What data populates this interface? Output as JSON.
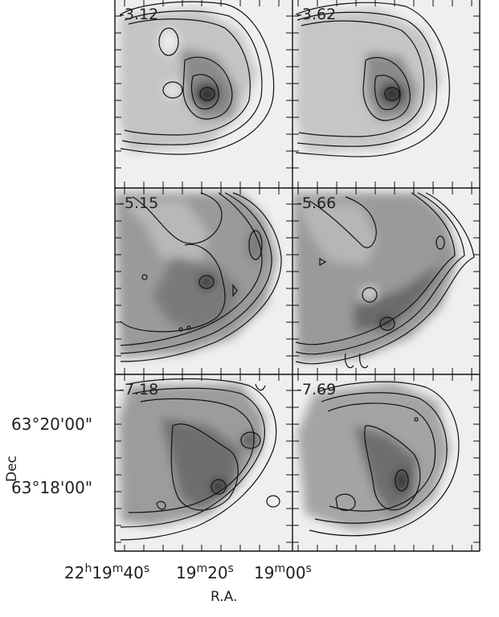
{
  "chart_data": {
    "type": "heatmap",
    "description": "Channel maps (grayscale + contours), 3 rows x 2 columns",
    "panels": [
      {
        "velocity_label": "-3.12"
      },
      {
        "velocity_label": "-3.62"
      },
      {
        "velocity_label": "-5.15"
      },
      {
        "velocity_label": "-5.66"
      },
      {
        "velocity_label": "-7.18"
      },
      {
        "velocity_label": "-7.69"
      }
    ],
    "x_axis": {
      "label": "R.A.",
      "ticks": [
        {
          "label_html": "22<tspan baseline-shift='super' font-size='14'>h</tspan>19<tspan baseline-shift='super' font-size='14'>m</tspan>40<tspan baseline-shift='super' font-size='14'>s</tspan>",
          "plain": "22h19m40s"
        },
        {
          "label_html": "19<tspan baseline-shift='super' font-size='14'>m</tspan>20<tspan baseline-shift='super' font-size='14'>s</tspan>",
          "plain": "19m20s"
        },
        {
          "label_html": "19<tspan baseline-shift='super' font-size='14'>m</tspan>00<tspan baseline-shift='super' font-size='14'>s</tspan>",
          "plain": "19m00s"
        }
      ]
    },
    "y_axis": {
      "label": "Dec",
      "ticks": [
        {
          "label": "63°20'00\""
        },
        {
          "label": "63°18'00\""
        }
      ]
    }
  }
}
